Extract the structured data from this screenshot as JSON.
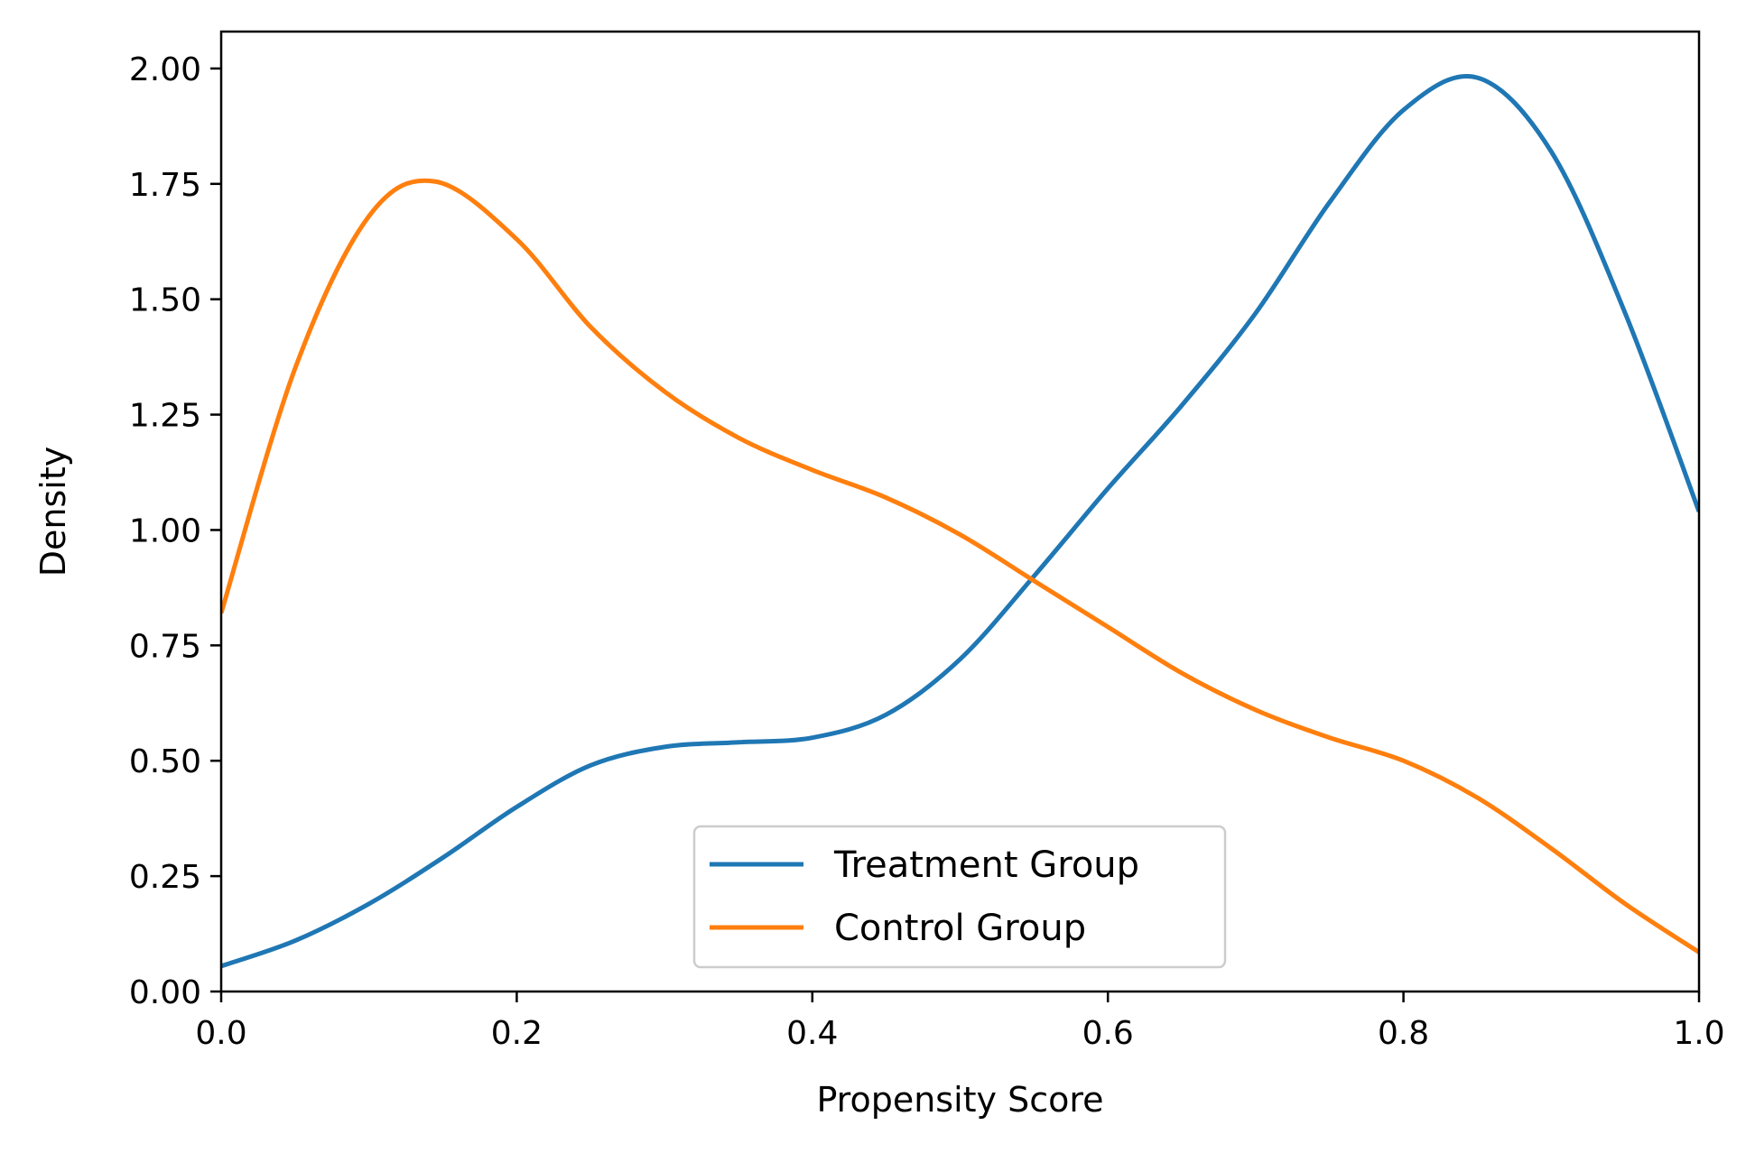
{
  "chart_data": {
    "type": "line",
    "title": "",
    "xlabel": "Propensity Score",
    "ylabel": "Density",
    "xlim": [
      0.0,
      1.0
    ],
    "ylim": [
      0.0,
      2.08
    ],
    "x_ticks": [
      0.0,
      0.2,
      0.4,
      0.6,
      0.8,
      1.0
    ],
    "x_tick_labels": [
      "0.0",
      "0.2",
      "0.4",
      "0.6",
      "0.8",
      "1.0"
    ],
    "y_ticks": [
      0.0,
      0.25,
      0.5,
      0.75,
      1.0,
      1.25,
      1.5,
      1.75,
      2.0
    ],
    "y_tick_labels": [
      "0.00",
      "0.25",
      "0.50",
      "0.75",
      "1.00",
      "1.25",
      "1.50",
      "1.75",
      "2.00"
    ],
    "grid": false,
    "legend_position": "bottom-center",
    "series": [
      {
        "name": "Treatment Group",
        "color": "#1f77b4",
        "x": [
          0.0,
          0.05,
          0.1,
          0.15,
          0.2,
          0.25,
          0.3,
          0.35,
          0.4,
          0.45,
          0.5,
          0.55,
          0.6,
          0.65,
          0.7,
          0.75,
          0.8,
          0.85,
          0.9,
          0.95,
          1.0
        ],
        "y": [
          0.055,
          0.11,
          0.19,
          0.29,
          0.4,
          0.49,
          0.53,
          0.54,
          0.55,
          0.6,
          0.72,
          0.9,
          1.09,
          1.27,
          1.47,
          1.71,
          1.91,
          1.98,
          1.82,
          1.47,
          1.04
        ]
      },
      {
        "name": "Control Group",
        "color": "#ff7f0e",
        "x": [
          0.0,
          0.05,
          0.1,
          0.145,
          0.2,
          0.25,
          0.3,
          0.35,
          0.4,
          0.45,
          0.5,
          0.55,
          0.6,
          0.65,
          0.7,
          0.75,
          0.8,
          0.85,
          0.9,
          0.95,
          1.0
        ],
        "y": [
          0.82,
          1.35,
          1.68,
          1.755,
          1.63,
          1.44,
          1.3,
          1.2,
          1.13,
          1.07,
          0.99,
          0.89,
          0.79,
          0.69,
          0.61,
          0.55,
          0.5,
          0.42,
          0.31,
          0.19,
          0.085
        ]
      }
    ]
  }
}
